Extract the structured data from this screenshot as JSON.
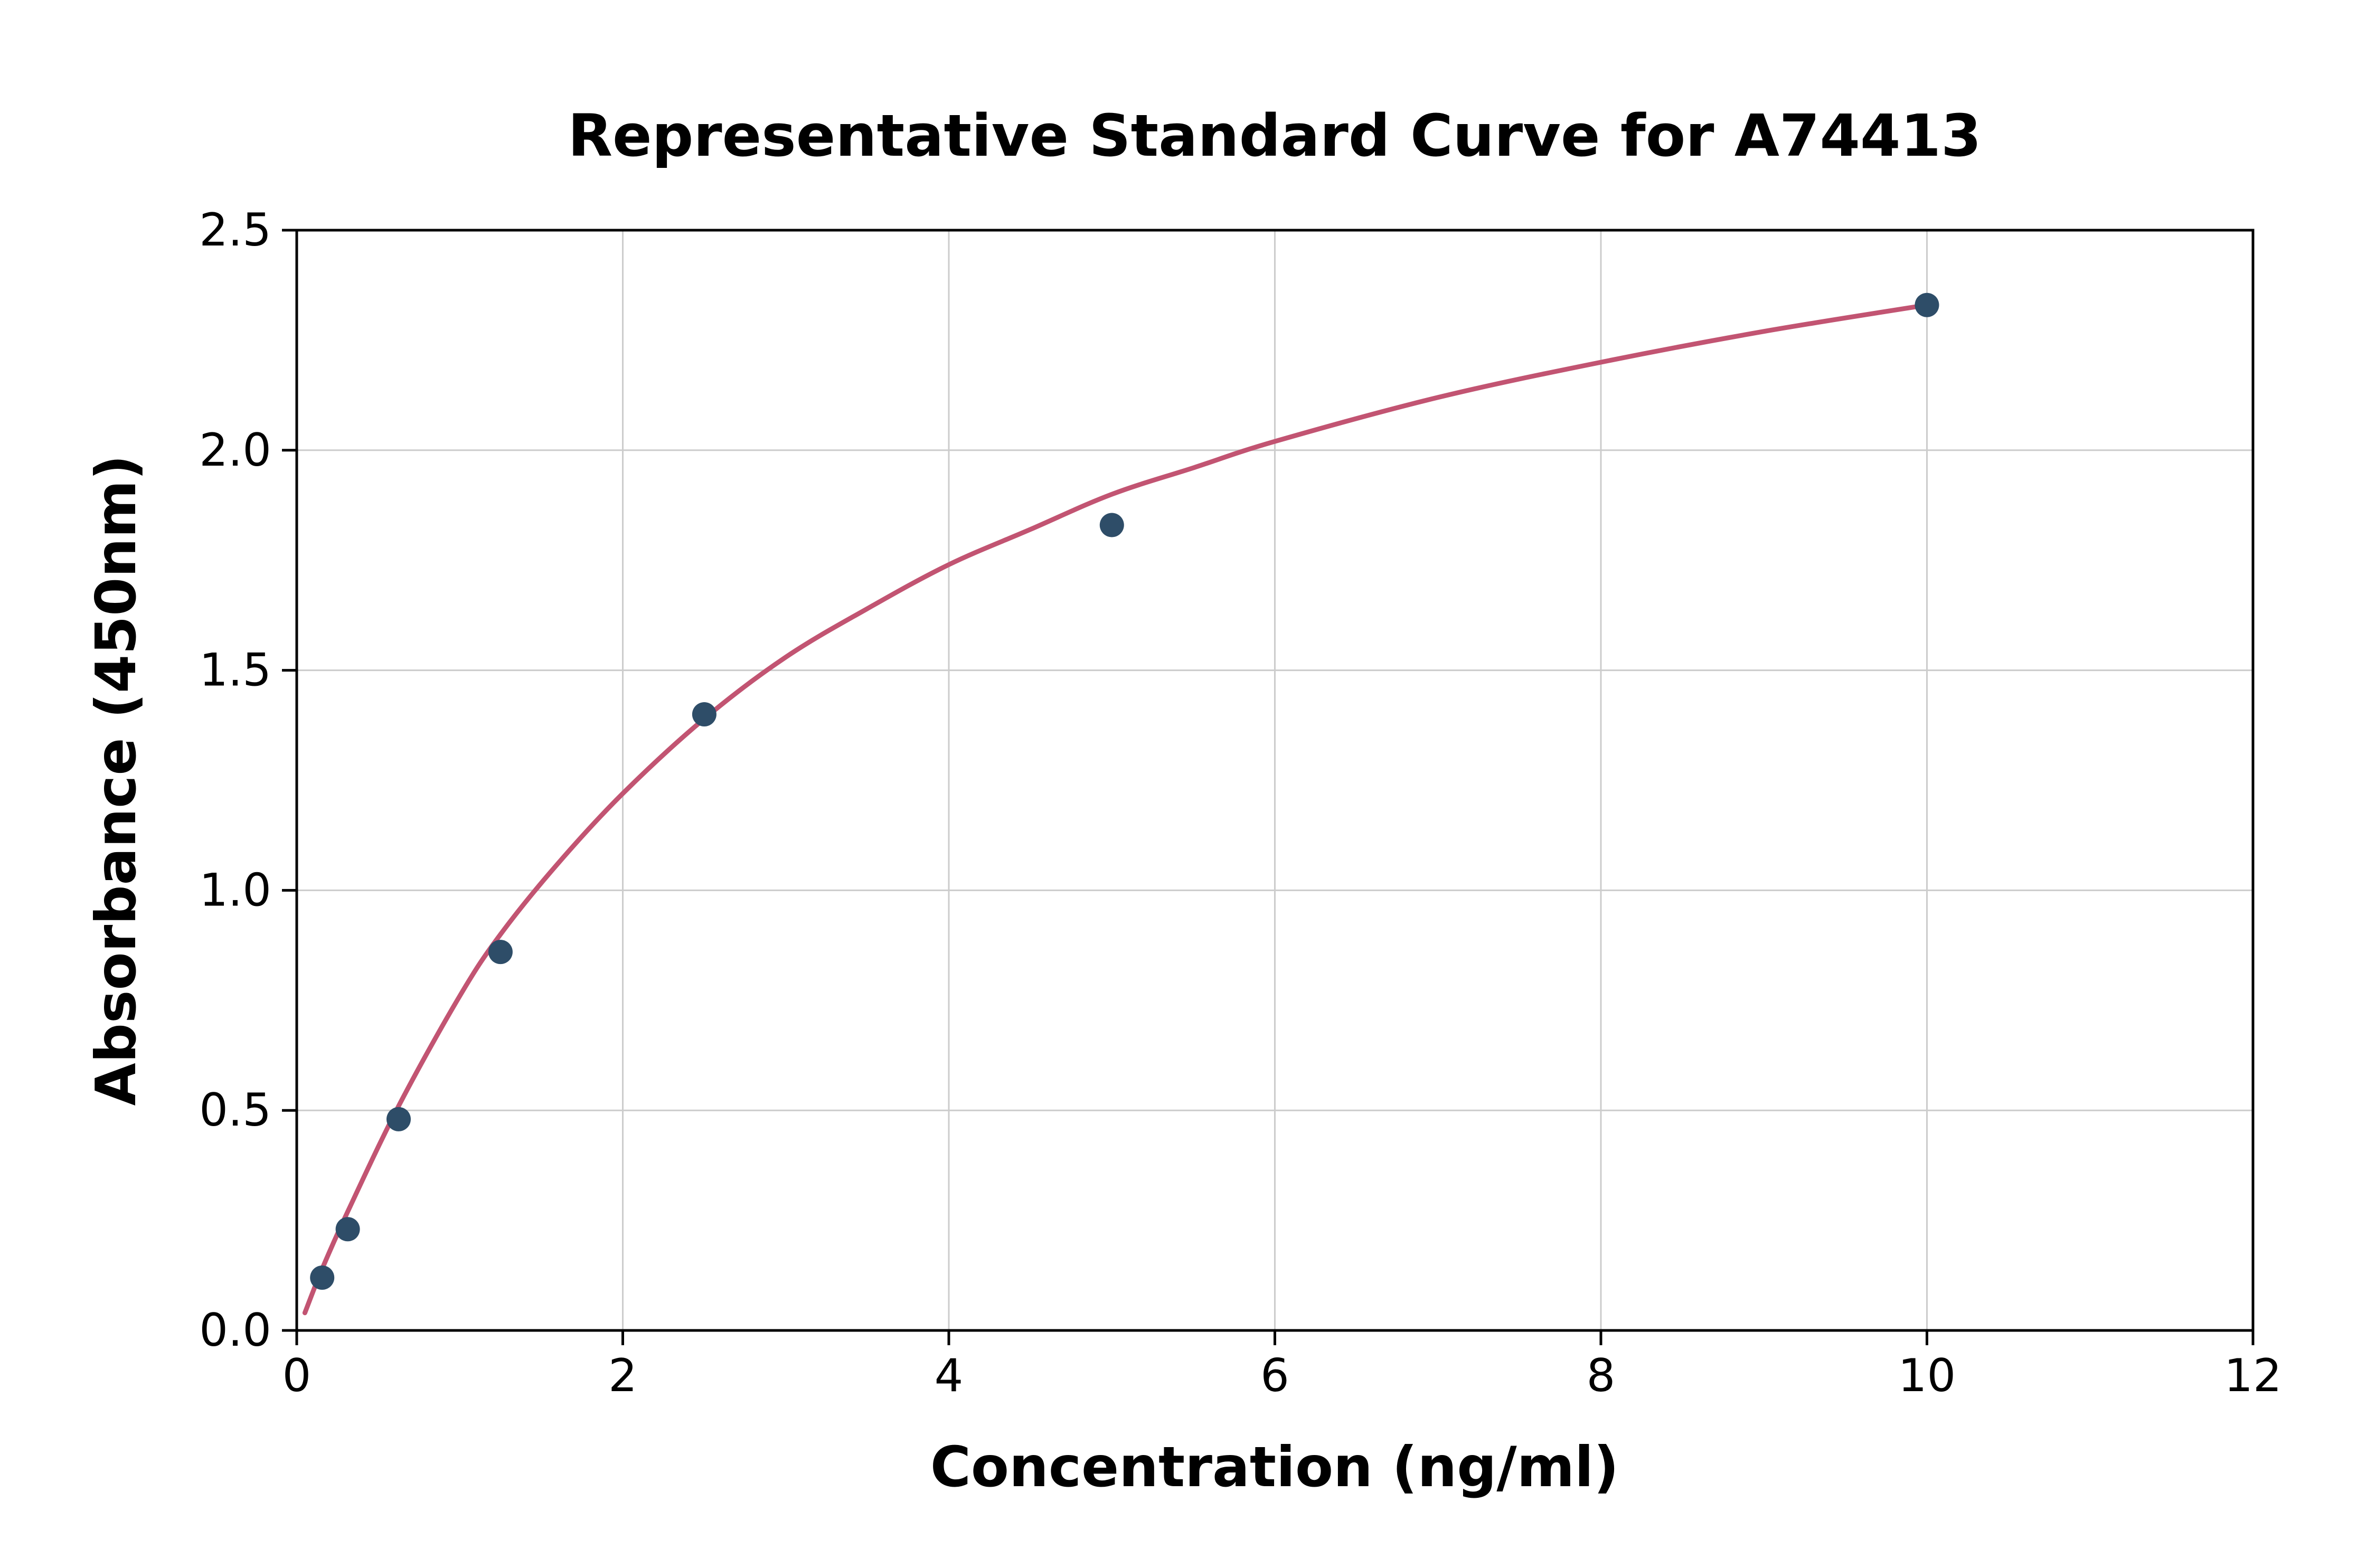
{
  "chart_data": {
    "type": "scatter",
    "title": "Representative Standard Curve for A74413",
    "xlabel": "Concentration (ng/ml)",
    "ylabel": "Absorbance (450nm)",
    "xlim": [
      0,
      12
    ],
    "ylim": [
      0,
      2.5
    ],
    "grid": true,
    "legend": "none",
    "x_ticks": [
      {
        "v": 0,
        "label": "0"
      },
      {
        "v": 2,
        "label": "2"
      },
      {
        "v": 4,
        "label": "4"
      },
      {
        "v": 6,
        "label": "6"
      },
      {
        "v": 8,
        "label": "8"
      },
      {
        "v": 10,
        "label": "10"
      },
      {
        "v": 12,
        "label": "12"
      }
    ],
    "y_ticks": [
      {
        "v": 0,
        "label": "0.0"
      },
      {
        "v": 0.5,
        "label": "0.5"
      },
      {
        "v": 1.0,
        "label": "1.0"
      },
      {
        "v": 1.5,
        "label": "1.5"
      },
      {
        "v": 2.0,
        "label": "2.0"
      },
      {
        "v": 2.5,
        "label": "2.5"
      }
    ],
    "points": [
      [
        0.156,
        0.12
      ],
      [
        0.313,
        0.23
      ],
      [
        0.625,
        0.48
      ],
      [
        1.25,
        0.86
      ],
      [
        2.5,
        1.4
      ],
      [
        5.0,
        1.83
      ],
      [
        10.0,
        2.33
      ]
    ],
    "fit_curve_points": [
      [
        0.05,
        0.04
      ],
      [
        0.156,
        0.14
      ],
      [
        0.313,
        0.27
      ],
      [
        0.625,
        0.51
      ],
      [
        1.0,
        0.76
      ],
      [
        1.25,
        0.9
      ],
      [
        1.6,
        1.06
      ],
      [
        2.0,
        1.22
      ],
      [
        2.5,
        1.39
      ],
      [
        3.0,
        1.53
      ],
      [
        3.5,
        1.64
      ],
      [
        4.0,
        1.74
      ],
      [
        4.5,
        1.82
      ],
      [
        5.0,
        1.9
      ],
      [
        5.5,
        1.96
      ],
      [
        6.0,
        2.02
      ],
      [
        7.0,
        2.12
      ],
      [
        8.0,
        2.2
      ],
      [
        9.0,
        2.27
      ],
      [
        10.0,
        2.33
      ]
    ],
    "colors": {
      "curve": "#c25472",
      "points": "#2e4d68",
      "grid": "#cccccc",
      "spine": "#000000",
      "background": "#ffffff"
    }
  }
}
